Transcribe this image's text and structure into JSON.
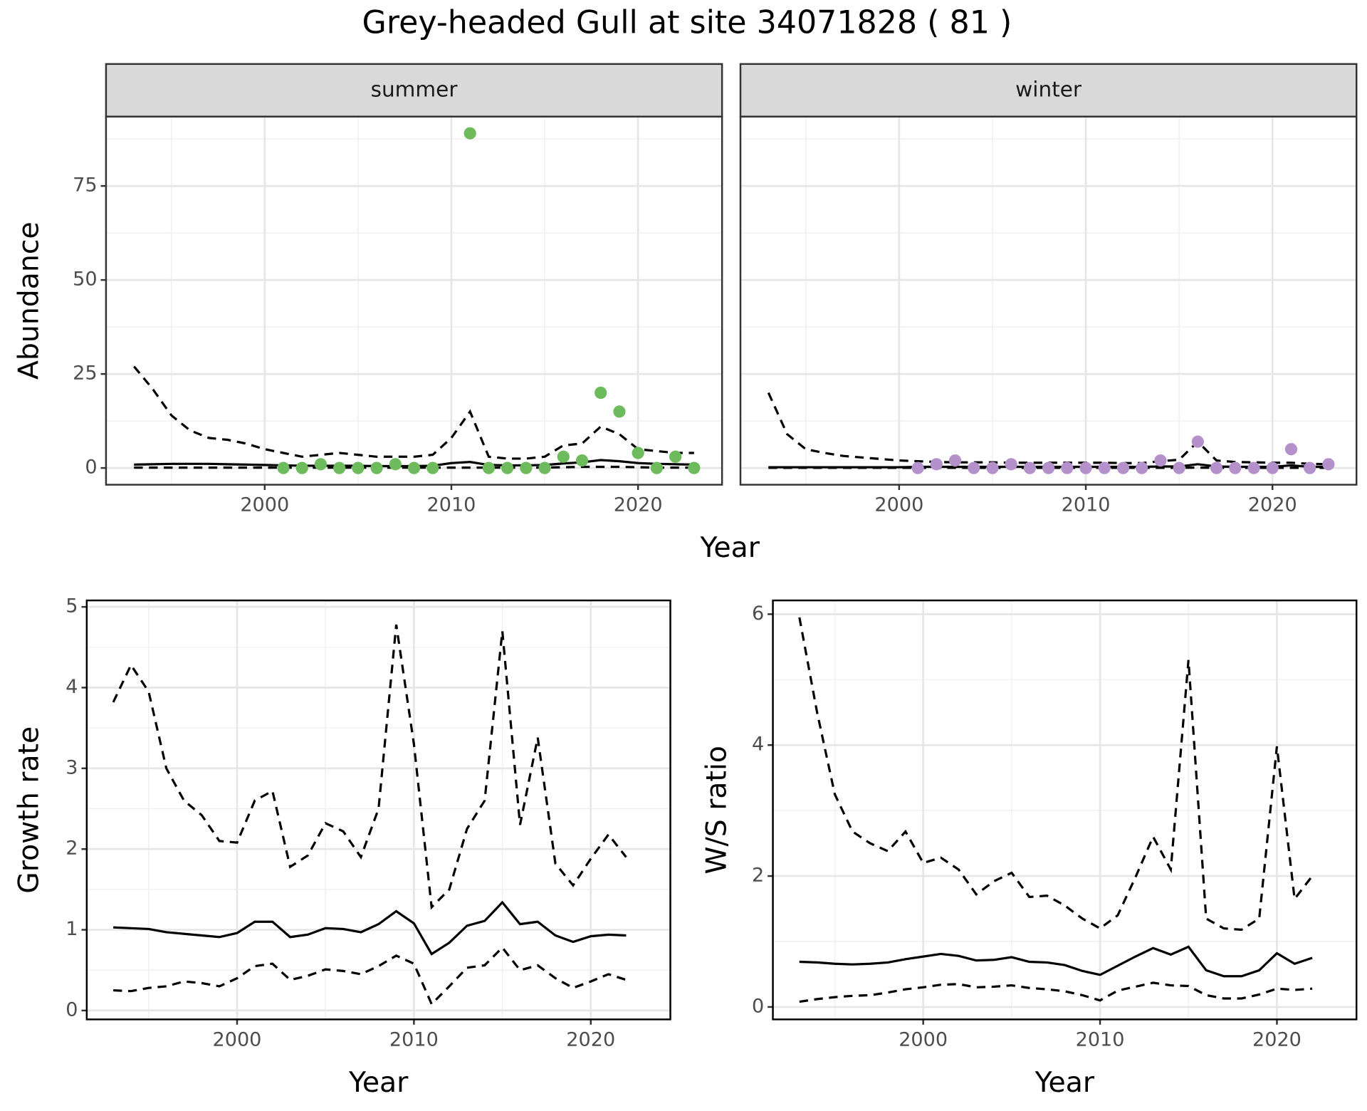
{
  "title": "Grey-headed Gull at site 34071828 ( 81 )",
  "chart_data": [
    {
      "type": "line",
      "facet": "summer",
      "xlabel": "Year",
      "ylabel": "Abundance",
      "grid": true,
      "show_ytick_labels": true,
      "x": [
        1993,
        1994,
        1995,
        1996,
        1997,
        1998,
        1999,
        2000,
        2001,
        2002,
        2003,
        2004,
        2005,
        2006,
        2007,
        2008,
        2009,
        2010,
        2011,
        2012,
        2013,
        2014,
        2015,
        2016,
        2017,
        2018,
        2019,
        2020,
        2021,
        2022,
        2023
      ],
      "xlim": [
        1991.5,
        2024.5
      ],
      "xticks": [
        2000,
        2010,
        2020
      ],
      "minor_xticks": [
        1995,
        2005,
        2015
      ],
      "ylim": [
        -4.45,
        93.45
      ],
      "yticks": [
        0,
        25,
        50,
        75
      ],
      "minor_yticks": [
        12.5,
        37.5,
        62.5,
        87.5
      ],
      "series": [
        {
          "type": "line",
          "linestyle": "solid",
          "color": "#000000",
          "values": [
            0.9,
            1.0,
            1.1,
            1.1,
            1.1,
            1.0,
            0.9,
            0.8,
            0.7,
            0.6,
            0.6,
            0.6,
            0.6,
            0.5,
            0.5,
            0.5,
            0.6,
            1.3,
            1.6,
            0.8,
            0.7,
            0.7,
            0.8,
            1.2,
            1.5,
            2.1,
            1.8,
            1.3,
            1.1,
            1.0,
            0.9
          ]
        },
        {
          "type": "line",
          "linestyle": "dashed",
          "color": "#000000",
          "values": [
            27,
            21,
            14,
            10,
            8,
            7.5,
            6.5,
            5,
            4,
            3,
            3.5,
            4,
            3.5,
            3,
            3,
            3,
            3.5,
            8,
            15,
            3,
            2.5,
            2.5,
            3,
            6,
            6.5,
            11,
            9,
            5,
            4.5,
            4,
            4
          ]
        },
        {
          "type": "line",
          "linestyle": "dashed",
          "color": "#000000",
          "values": [
            0.1,
            0.1,
            0.1,
            0.1,
            0.1,
            0.1,
            0.1,
            0.1,
            0.1,
            0.1,
            0.1,
            0.1,
            0.1,
            0.1,
            0.1,
            0.1,
            0.1,
            0.1,
            0.1,
            0.1,
            0.1,
            0.1,
            0.1,
            0.2,
            0.3,
            0.3,
            0.3,
            0.2,
            0.1,
            0.1,
            0.1
          ]
        },
        {
          "type": "scatter",
          "color": "#6dbb5c",
          "values": [
            null,
            null,
            null,
            null,
            null,
            null,
            null,
            null,
            0,
            0,
            1,
            0,
            0,
            0,
            1,
            0,
            0,
            null,
            89,
            0,
            0,
            0,
            0,
            3,
            2,
            20,
            15,
            4,
            0,
            3,
            0
          ]
        }
      ]
    },
    {
      "type": "line",
      "facet": "winter",
      "grid": true,
      "show_ytick_labels": false,
      "x": [
        1993,
        1994,
        1995,
        1996,
        1997,
        1998,
        1999,
        2000,
        2001,
        2002,
        2003,
        2004,
        2005,
        2006,
        2007,
        2008,
        2009,
        2010,
        2011,
        2012,
        2013,
        2014,
        2015,
        2016,
        2017,
        2018,
        2019,
        2020,
        2021,
        2022,
        2023
      ],
      "xlim": [
        1991.5,
        2024.5
      ],
      "xticks": [
        2000,
        2010,
        2020
      ],
      "minor_xticks": [
        1995,
        2005,
        2015
      ],
      "ylim": [
        -4.45,
        93.45
      ],
      "yticks": [
        0,
        25,
        50,
        75
      ],
      "minor_yticks": [
        12.5,
        37.5,
        62.5,
        87.5
      ],
      "series": [
        {
          "type": "line",
          "linestyle": "solid",
          "color": "#000000",
          "values": [
            0.2,
            0.2,
            0.2,
            0.2,
            0.2,
            0.2,
            0.2,
            0.2,
            0.3,
            0.3,
            0.3,
            0.3,
            0.3,
            0.3,
            0.3,
            0.3,
            0.3,
            0.3,
            0.3,
            0.3,
            0.3,
            0.4,
            0.4,
            1.0,
            0.4,
            0.3,
            0.3,
            0.3,
            0.7,
            0.3,
            0.3
          ]
        },
        {
          "type": "line",
          "linestyle": "dashed",
          "color": "#000000",
          "values": [
            20,
            9,
            5,
            4,
            3.2,
            2.8,
            2.4,
            2,
            1.8,
            1.6,
            1.5,
            1.5,
            1.5,
            1.4,
            1.4,
            1.4,
            1.4,
            1.4,
            1.4,
            1.3,
            1.3,
            1.8,
            2.2,
            7,
            2,
            1.6,
            1.5,
            1.4,
            1.4,
            1.1,
            1.0
          ]
        },
        {
          "type": "line",
          "linestyle": "dashed",
          "color": "#000000",
          "values": [
            0.05,
            0.05,
            0.05,
            0.05,
            0.05,
            0.05,
            0.05,
            0.05,
            0.05,
            0.05,
            0.05,
            0.05,
            0.05,
            0.05,
            0.05,
            0.05,
            0.05,
            0.05,
            0.05,
            0.05,
            0.05,
            0.05,
            0.05,
            0.1,
            0.05,
            0.05,
            0.05,
            0.05,
            0.05,
            0.05,
            0.05
          ]
        },
        {
          "type": "scatter",
          "color": "#b591cc",
          "values": [
            null,
            null,
            null,
            null,
            null,
            null,
            null,
            null,
            0,
            1,
            2,
            0,
            0,
            1,
            0,
            0,
            0,
            0,
            0,
            0,
            0,
            2,
            0,
            7,
            0,
            0,
            0,
            0,
            5,
            0,
            1
          ]
        }
      ]
    },
    {
      "type": "line",
      "xlabel": "Year",
      "ylabel": "Growth rate",
      "grid": true,
      "show_ytick_labels": true,
      "x": [
        1993,
        1994,
        1995,
        1996,
        1997,
        1998,
        1999,
        2000,
        2001,
        2002,
        2003,
        2004,
        2005,
        2006,
        2007,
        2008,
        2009,
        2010,
        2011,
        2012,
        2013,
        2014,
        2015,
        2016,
        2017,
        2018,
        2019,
        2020,
        2021,
        2022
      ],
      "xlim": [
        1991.5,
        2024.5
      ],
      "xticks": [
        2000,
        2010,
        2020
      ],
      "minor_xticks": [
        1995,
        2005,
        2015
      ],
      "ylim": [
        -0.11,
        5.08
      ],
      "yticks": [
        0,
        1,
        2,
        3,
        4,
        5
      ],
      "minor_yticks": [
        0.5,
        1.5,
        2.5,
        3.5,
        4.5
      ],
      "series": [
        {
          "type": "line",
          "linestyle": "solid",
          "color": "#000000",
          "values": [
            1.03,
            1.02,
            1.01,
            0.97,
            0.95,
            0.93,
            0.91,
            0.96,
            1.1,
            1.1,
            0.91,
            0.94,
            1.02,
            1.01,
            0.97,
            1.07,
            1.23,
            1.08,
            0.7,
            0.84,
            1.05,
            1.11,
            1.34,
            1.07,
            1.1,
            0.93,
            0.85,
            0.92,
            0.94,
            0.93
          ]
        },
        {
          "type": "line",
          "linestyle": "dashed",
          "color": "#000000",
          "values": [
            3.82,
            4.28,
            3.95,
            3.0,
            2.6,
            2.42,
            2.1,
            2.08,
            2.6,
            2.72,
            1.78,
            1.92,
            2.32,
            2.22,
            1.9,
            2.5,
            4.78,
            3.3,
            1.28,
            1.5,
            2.25,
            2.6,
            4.7,
            2.3,
            3.38,
            1.82,
            1.55,
            1.88,
            2.18,
            1.9
          ]
        },
        {
          "type": "line",
          "linestyle": "dashed",
          "color": "#000000",
          "values": [
            0.25,
            0.24,
            0.28,
            0.3,
            0.36,
            0.34,
            0.3,
            0.4,
            0.55,
            0.58,
            0.38,
            0.43,
            0.51,
            0.49,
            0.45,
            0.55,
            0.68,
            0.58,
            0.08,
            0.3,
            0.53,
            0.56,
            0.78,
            0.5,
            0.56,
            0.4,
            0.28,
            0.36,
            0.45,
            0.38
          ]
        }
      ]
    },
    {
      "type": "line",
      "xlabel": "Year",
      "ylabel": "W/S ratio",
      "grid": true,
      "show_ytick_labels": true,
      "x": [
        1993,
        1994,
        1995,
        1996,
        1997,
        1998,
        1999,
        2000,
        2001,
        2002,
        2003,
        2004,
        2005,
        2006,
        2007,
        2008,
        2009,
        2010,
        2011,
        2012,
        2013,
        2014,
        2015,
        2016,
        2017,
        2018,
        2019,
        2020,
        2021,
        2022
      ],
      "xlim": [
        1991.5,
        2024.5
      ],
      "xticks": [
        2000,
        2010,
        2020
      ],
      "minor_xticks": [
        1995,
        2005,
        2015
      ],
      "ylim": [
        -0.19,
        6.21
      ],
      "yticks": [
        0,
        2,
        4,
        6
      ],
      "minor_yticks": [
        1,
        3,
        5
      ],
      "series": [
        {
          "type": "line",
          "linestyle": "solid",
          "color": "#000000",
          "values": [
            0.69,
            0.68,
            0.66,
            0.65,
            0.66,
            0.68,
            0.73,
            0.77,
            0.81,
            0.78,
            0.71,
            0.72,
            0.76,
            0.69,
            0.68,
            0.64,
            0.55,
            0.49,
            0.63,
            0.77,
            0.9,
            0.8,
            0.92,
            0.56,
            0.47,
            0.47,
            0.56,
            0.82,
            0.66,
            0.75
          ]
        },
        {
          "type": "line",
          "linestyle": "dashed",
          "color": "#000000",
          "values": [
            5.95,
            4.5,
            3.25,
            2.68,
            2.5,
            2.38,
            2.68,
            2.2,
            2.28,
            2.1,
            1.72,
            1.92,
            2.05,
            1.68,
            1.7,
            1.55,
            1.35,
            1.2,
            1.4,
            1.98,
            2.6,
            2.1,
            5.3,
            1.35,
            1.2,
            1.18,
            1.35,
            3.98,
            1.65,
            2.0
          ]
        },
        {
          "type": "line",
          "linestyle": "dashed",
          "color": "#000000",
          "values": [
            0.08,
            0.12,
            0.15,
            0.17,
            0.18,
            0.22,
            0.27,
            0.3,
            0.34,
            0.35,
            0.3,
            0.31,
            0.33,
            0.29,
            0.27,
            0.24,
            0.18,
            0.1,
            0.25,
            0.31,
            0.37,
            0.33,
            0.32,
            0.18,
            0.13,
            0.13,
            0.19,
            0.28,
            0.26,
            0.28
          ]
        }
      ]
    }
  ]
}
